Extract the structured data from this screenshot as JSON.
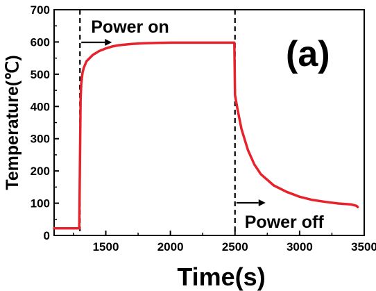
{
  "chart_data": {
    "type": "line",
    "panel_label": "(a)",
    "xlabel": "Time(s)",
    "ylabel": "Temperature(℃)",
    "xlim": [
      1100,
      3500
    ],
    "ylim": [
      0,
      700
    ],
    "x_ticks": [
      1500,
      2000,
      2500,
      3000,
      3500
    ],
    "y_ticks": [
      0,
      100,
      200,
      300,
      400,
      500,
      600,
      700
    ],
    "line_color": "#e8222a",
    "annotations": [
      {
        "text": "Power on",
        "x": 1300
      },
      {
        "text": "Power off",
        "x": 2500
      }
    ],
    "series": [
      {
        "x": [
          1100,
          1200,
          1295,
          1300,
          1305,
          1310,
          1320,
          1330,
          1350,
          1400,
          1450,
          1500,
          1550,
          1600,
          1700,
          1800,
          1900,
          2000,
          2100,
          2200,
          2300,
          2400,
          2490,
          2495,
          2500,
          2520,
          2550,
          2600,
          2650,
          2700,
          2800,
          2900,
          3000,
          3100,
          3200,
          3300,
          3400,
          3440,
          3450
        ],
        "y": [
          22,
          22,
          22,
          240,
          420,
          470,
          505,
          520,
          540,
          560,
          572,
          580,
          586,
          590,
          594,
          596,
          597,
          598,
          598,
          598,
          598,
          598,
          598,
          598,
          435,
          390,
          330,
          265,
          220,
          190,
          155,
          135,
          120,
          110,
          104,
          99,
          96,
          92,
          88
        ]
      }
    ]
  }
}
